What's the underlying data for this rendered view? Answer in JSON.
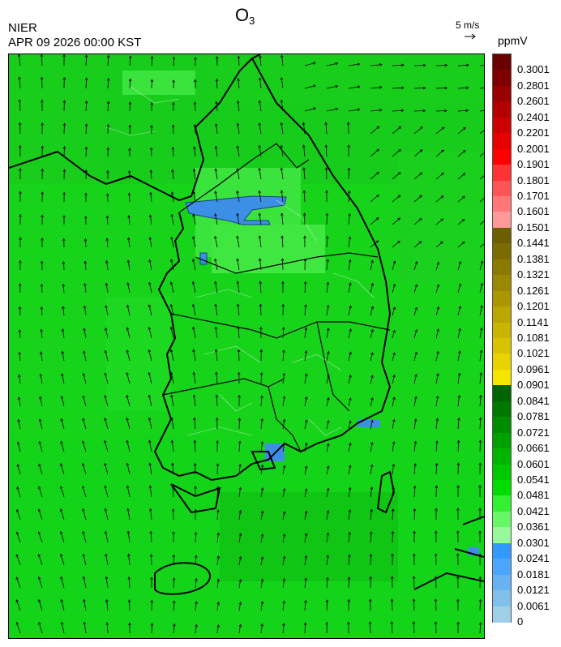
{
  "header": {
    "title_main": "O",
    "title_sub": "3",
    "agency": "NIER",
    "datetime": "APR 09 2026 00:00 KST",
    "vector_ref_label": "5 m/s",
    "unit": "ppmV"
  },
  "colorbar": {
    "labels": [
      "0.3001",
      "0.2801",
      "0.2601",
      "0.2401",
      "0.2201",
      "0.2001",
      "0.1901",
      "0.1801",
      "0.1701",
      "0.1601",
      "0.1501",
      "0.1441",
      "0.1381",
      "0.1321",
      "0.1261",
      "0.1201",
      "0.1141",
      "0.1081",
      "0.1021",
      "0.0961",
      "0.0901",
      "0.0841",
      "0.0781",
      "0.0721",
      "0.0661",
      "0.0601",
      "0.0541",
      "0.0481",
      "0.0421",
      "0.0361",
      "0.0301",
      "0.0241",
      "0.0181",
      "0.0121",
      "0.0061",
      "0"
    ],
    "colors": [
      "#6b0000",
      "#7f0000",
      "#990000",
      "#b20000",
      "#cc0000",
      "#e60000",
      "#ff0000",
      "#ff3333",
      "#ff5555",
      "#ff7777",
      "#ff9999",
      "#6b5f00",
      "#7a6c00",
      "#8a7a00",
      "#998800",
      "#aa9700",
      "#b9a600",
      "#c9b400",
      "#d9c300",
      "#e8d200",
      "#f5e400",
      "#006400",
      "#007800",
      "#008c00",
      "#00a000",
      "#00b400",
      "#00c800",
      "#00dc00",
      "#33f033",
      "#66f666",
      "#99f899",
      "#3399ff",
      "#4ca6ff",
      "#66b3f0",
      "#80c0ea",
      "#a0cfe8"
    ]
  },
  "map": {
    "background_color": "#17d41b",
    "coast_color": "#000000",
    "region": "Korean Peninsula (South Korea) with Jeju Island"
  }
}
